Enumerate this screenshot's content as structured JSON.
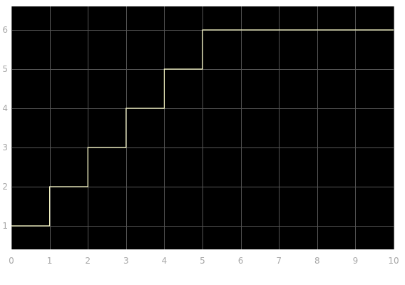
{
  "chart_data": {
    "type": "line",
    "step": "post",
    "title": "",
    "xlabel": "",
    "ylabel": "",
    "xlim": [
      0,
      10
    ],
    "ylim": [
      0.4,
      6.6
    ],
    "grid": true,
    "background_color": "#000000",
    "grid_color": "#555555",
    "x_ticks": [
      0,
      1,
      2,
      3,
      4,
      5,
      6,
      7,
      8,
      9,
      10
    ],
    "x_tick_labels": [
      "0",
      "1",
      "2",
      "3",
      "4",
      "5",
      "6",
      "7",
      "8",
      "9",
      "10"
    ],
    "y_ticks": [
      1,
      2,
      3,
      4,
      5,
      6
    ],
    "y_tick_labels": [
      "1",
      "2",
      "3",
      "4",
      "5",
      "6"
    ],
    "series": [
      {
        "color": "#ffffcc",
        "x": [
          0,
          1,
          2,
          3,
          4,
          5,
          10
        ],
        "y": [
          1,
          2,
          3,
          4,
          5,
          6,
          6
        ]
      }
    ]
  }
}
